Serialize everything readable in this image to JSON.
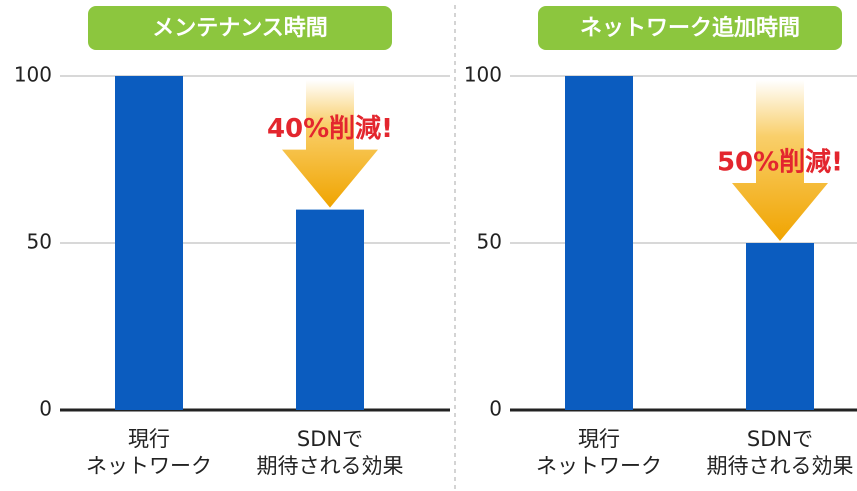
{
  "chart_data": [
    {
      "type": "bar",
      "title": "メンテナンス時間",
      "categories": [
        "現行\nネットワーク",
        "SDNで\n期待される効果"
      ],
      "values": [
        100,
        60
      ],
      "color": "#0b5cbf",
      "ylim": [
        0,
        100
      ],
      "yticks": [
        0,
        50,
        100
      ],
      "grid": true,
      "annotation": "40%削減!"
    },
    {
      "type": "bar",
      "title": "ネットワーク追加時間",
      "categories": [
        "現行\nネットワーク",
        "SDNで\n期待される効果"
      ],
      "values": [
        100,
        50
      ],
      "color": "#0b5cbf",
      "ylim": [
        0,
        100
      ],
      "yticks": [
        0,
        50,
        100
      ],
      "grid": true,
      "annotation": "50%削減!"
    }
  ]
}
